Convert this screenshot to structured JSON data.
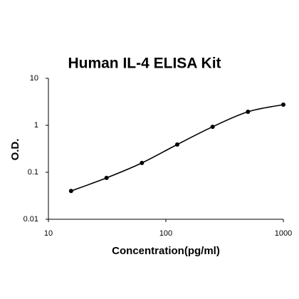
{
  "chart_data": {
    "type": "scatter",
    "title": "Human IL-4 ELISA Kit",
    "x_label": "Concentration(pg/ml)",
    "y_label": "O.D.",
    "x": [
      15.6,
      31.25,
      62.5,
      125,
      250,
      500,
      1000
    ],
    "values": [
      0.04,
      0.076,
      0.158,
      0.39,
      0.93,
      1.94,
      2.75
    ],
    "color": "#000000",
    "line": true,
    "xlog": true,
    "ylog": true,
    "xlim": [
      10,
      1000
    ],
    "xticks": [
      10,
      100,
      1000
    ],
    "ylim": [
      0.01,
      10
    ],
    "yticks": [
      0.01,
      0.1,
      1,
      10
    ]
  }
}
